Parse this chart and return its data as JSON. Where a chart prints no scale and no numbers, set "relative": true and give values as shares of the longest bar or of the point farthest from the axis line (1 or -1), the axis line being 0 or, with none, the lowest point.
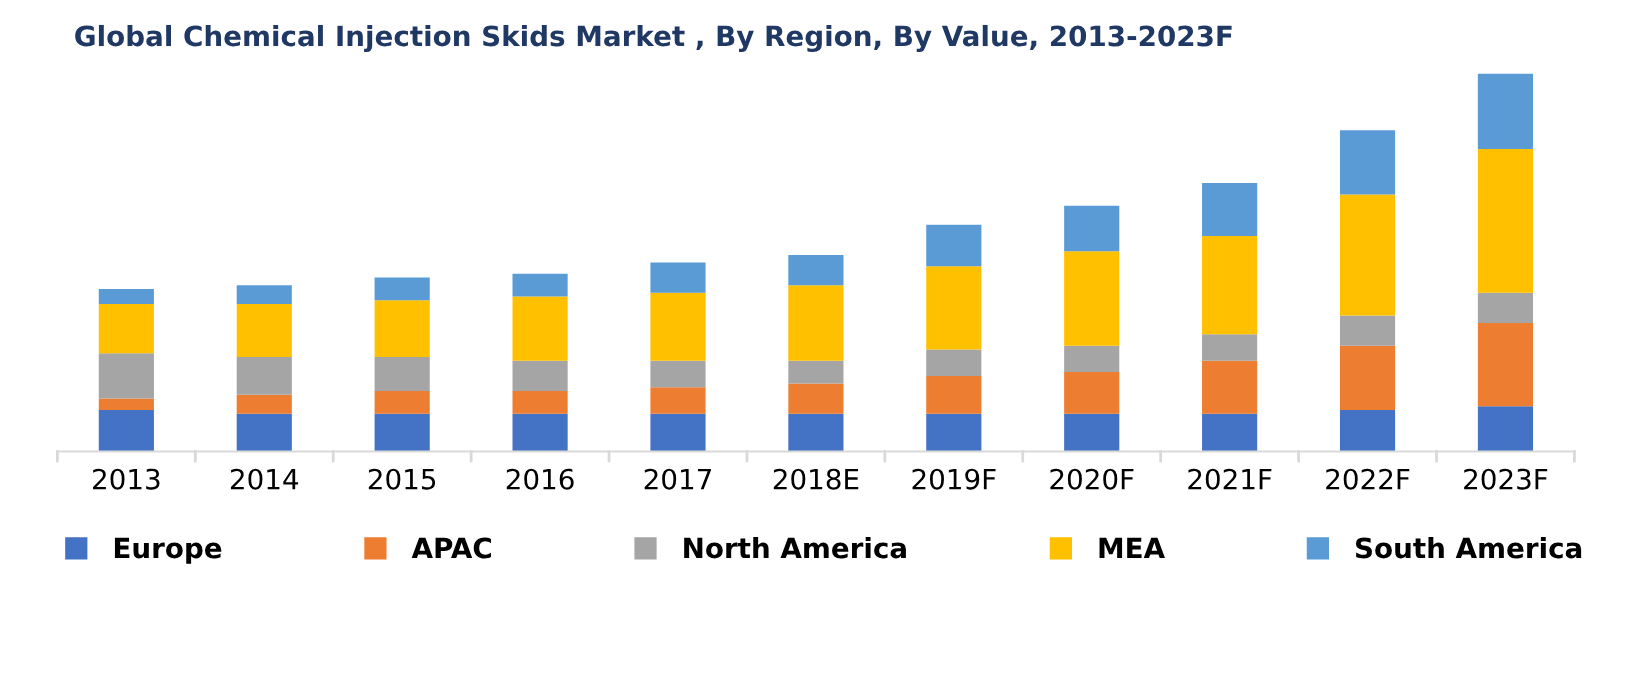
{
  "chart_data": {
    "type": "bar",
    "stacked": true,
    "relative": true,
    "title": "Global Chemical Injection Skids Market , By Region, By Value, 2013-2023F",
    "categories": [
      "2013",
      "2014",
      "2015",
      "2016",
      "2017",
      "2018E",
      "2019F",
      "2020F",
      "2021F",
      "2022F",
      "2023F"
    ],
    "series": [
      {
        "name": "Europe",
        "color": "#4472c4",
        "values": [
          0.11,
          0.1,
          0.1,
          0.1,
          0.1,
          0.1,
          0.1,
          0.1,
          0.1,
          0.11,
          0.12
        ]
      },
      {
        "name": "APAC",
        "color": "#ed7d31",
        "values": [
          0.03,
          0.05,
          0.06,
          0.06,
          0.07,
          0.08,
          0.1,
          0.11,
          0.14,
          0.17,
          0.22
        ]
      },
      {
        "name": "North America",
        "color": "#a5a5a5",
        "values": [
          0.12,
          0.1,
          0.09,
          0.08,
          0.07,
          0.06,
          0.07,
          0.07,
          0.07,
          0.08,
          0.08
        ]
      },
      {
        "name": "MEA",
        "color": "#ffc000",
        "values": [
          0.13,
          0.14,
          0.15,
          0.17,
          0.18,
          0.2,
          0.22,
          0.25,
          0.26,
          0.32,
          0.38
        ]
      },
      {
        "name": "South America",
        "color": "#5b9bd5",
        "values": [
          0.04,
          0.05,
          0.06,
          0.06,
          0.08,
          0.08,
          0.11,
          0.12,
          0.14,
          0.17,
          0.2
        ]
      }
    ],
    "legend": "bottom",
    "grid": false
  }
}
